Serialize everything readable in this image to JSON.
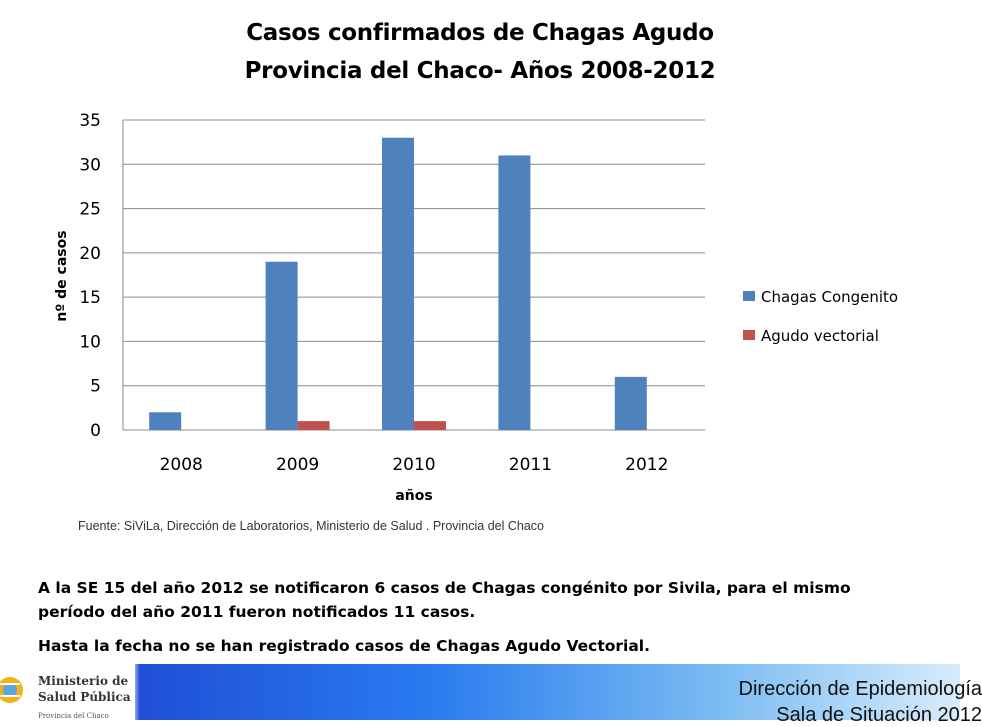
{
  "slide": {
    "title_line1": "Casos confirmados de Chagas Agudo",
    "title_line2": "Provincia del Chaco- Años 2008-2012",
    "source": "Fuente: SiViLa, Dirección de Laboratorios, Ministerio de Salud . Provincia del Chaco",
    "note_line1": "A la SE 15 del año 2012 se notificaron 6 casos de Chagas congénito  por Sivila, para el mismo",
    "note_line2": "período  del año 2011 fueron notificados 11 casos.",
    "note_line3": "Hasta la fecha no se han registrado casos de Chagas Agudo Vectorial."
  },
  "footer": {
    "logo_line1": "Ministerio de",
    "logo_line2": "Salud Pública",
    "logo_line3": "Provincia del Chaco",
    "text_line1": "Dirección de Epidemiología",
    "text_line2": "Sala de Situación 2012"
  },
  "chart_data": {
    "type": "bar",
    "title": "Casos confirmados de Chagas Agudo Provincia del Chaco- Años 2008-2012",
    "xlabel": "años",
    "ylabel": "nº de casos",
    "categories": [
      "2008",
      "2009",
      "2010",
      "2011",
      "2012"
    ],
    "series": [
      {
        "name": "Chagas  Congenito",
        "values": [
          2,
          19,
          33,
          31,
          6
        ],
        "color": "#4f81bd"
      },
      {
        "name": "Agudo vectorial",
        "values": [
          0,
          1,
          1,
          0,
          0
        ],
        "color": "#c0504d"
      }
    ],
    "ylim": [
      0,
      35
    ],
    "yticks": [
      0,
      5,
      10,
      15,
      20,
      25,
      30,
      35
    ],
    "grid": true,
    "legend_position": "right"
  }
}
